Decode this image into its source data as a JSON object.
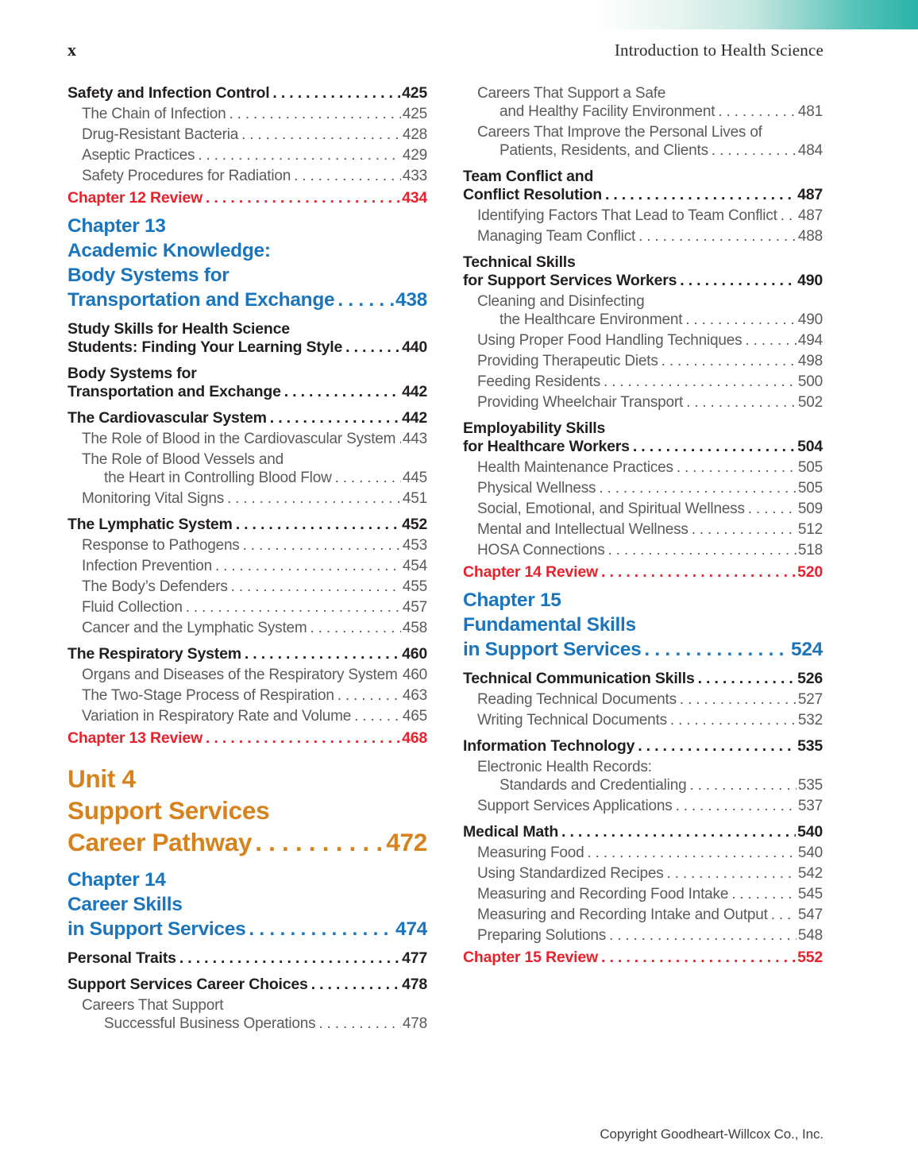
{
  "page": {
    "folio": "x",
    "running_head": "Introduction to Health Science",
    "copyright": "Copyright Goodheart-Willcox Co., Inc."
  },
  "colors": {
    "accent_teal": "#2ab3a9",
    "chapter_blue": "#1b75bc",
    "unit_orange": "#d6831e",
    "review_red": "#e8222d",
    "body_gray": "#595a5c",
    "heading_black": "#231f20"
  },
  "toc": {
    "left": [
      {
        "style": "section",
        "lines": [
          "Safety and Infection Control"
        ],
        "page": "425"
      },
      {
        "style": "sub",
        "lines": [
          "The Chain of Infection"
        ],
        "page": "425"
      },
      {
        "style": "sub",
        "lines": [
          "Drug-Resistant Bacteria"
        ],
        "page": "428"
      },
      {
        "style": "sub",
        "lines": [
          "Aseptic Practices"
        ],
        "page": "429"
      },
      {
        "style": "sub",
        "lines": [
          "Safety Procedures for Radiation"
        ],
        "page": "433"
      },
      {
        "style": "review",
        "lines": [
          "Chapter 12 Review"
        ],
        "page": "434"
      },
      {
        "style": "chapter",
        "lines": [
          "Chapter 13",
          "Academic Knowledge:",
          "Body Systems for",
          "Transportation and Exchange"
        ],
        "page": "438"
      },
      {
        "style": "section",
        "lines": [
          "Study Skills for Health Science",
          "Students: Finding Your Learning Style"
        ],
        "page": "440"
      },
      {
        "style": "section",
        "lines": [
          "Body Systems for",
          "Transportation and Exchange"
        ],
        "page": "442"
      },
      {
        "style": "section",
        "lines": [
          "The Cardiovascular System"
        ],
        "page": "442"
      },
      {
        "style": "sub",
        "lines": [
          "The Role of Blood in the Cardiovascular System"
        ],
        "page": "443"
      },
      {
        "style": "sub",
        "lines": [
          "The Role of Blood Vessels and",
          "the Heart in Controlling Blood Flow"
        ],
        "page": "445"
      },
      {
        "style": "sub",
        "lines": [
          "Monitoring Vital Signs"
        ],
        "page": "451"
      },
      {
        "style": "section",
        "lines": [
          "The Lymphatic System"
        ],
        "page": "452"
      },
      {
        "style": "sub",
        "lines": [
          "Response to Pathogens"
        ],
        "page": "453"
      },
      {
        "style": "sub",
        "lines": [
          "Infection Prevention"
        ],
        "page": "454"
      },
      {
        "style": "sub",
        "lines": [
          "The Body’s Defenders"
        ],
        "page": "455"
      },
      {
        "style": "sub",
        "lines": [
          "Fluid Collection"
        ],
        "page": "457"
      },
      {
        "style": "sub",
        "lines": [
          "Cancer and the Lymphatic System"
        ],
        "page": "458"
      },
      {
        "style": "section",
        "lines": [
          "The Respiratory System"
        ],
        "page": "460"
      },
      {
        "style": "sub",
        "lines": [
          "Organs and Diseases of the Respiratory System"
        ],
        "page": "460"
      },
      {
        "style": "sub",
        "lines": [
          "The Two-Stage Process of Respiration"
        ],
        "page": "463"
      },
      {
        "style": "sub",
        "lines": [
          "Variation in Respiratory Rate and Volume"
        ],
        "page": "465"
      },
      {
        "style": "review",
        "lines": [
          "Chapter 13 Review"
        ],
        "page": "468"
      },
      {
        "style": "unit",
        "lines": [
          "Unit 4",
          "Support Services",
          "Career Pathway"
        ],
        "page": "472"
      },
      {
        "style": "chapter",
        "lines": [
          "Chapter 14",
          "Career Skills",
          "in Support Services"
        ],
        "page": "474"
      },
      {
        "style": "section",
        "lines": [
          "Personal Traits"
        ],
        "page": "477"
      },
      {
        "style": "section",
        "lines": [
          "Support Services Career Choices"
        ],
        "page": "478"
      },
      {
        "style": "sub",
        "lines": [
          "Careers That Support",
          "Successful Business Operations"
        ],
        "page": "478"
      }
    ],
    "right": [
      {
        "style": "sub",
        "lines": [
          "Careers That Support a Safe",
          "and Healthy Facility Environment"
        ],
        "page": "481"
      },
      {
        "style": "sub",
        "lines": [
          "Careers That Improve the Personal Lives of",
          "Patients, Residents, and Clients"
        ],
        "page": "484"
      },
      {
        "style": "section",
        "lines": [
          "Team Conflict and",
          "Conflict Resolution"
        ],
        "page": "487"
      },
      {
        "style": "sub",
        "lines": [
          "Identifying Factors That Lead to Team Conflict"
        ],
        "page": "487"
      },
      {
        "style": "sub",
        "lines": [
          "Managing Team Conflict"
        ],
        "page": "488"
      },
      {
        "style": "section",
        "lines": [
          "Technical Skills",
          "for Support Services Workers"
        ],
        "page": "490"
      },
      {
        "style": "sub",
        "lines": [
          "Cleaning and Disinfecting",
          "the Healthcare Environment"
        ],
        "page": "490"
      },
      {
        "style": "sub",
        "lines": [
          "Using Proper Food Handling Techniques"
        ],
        "page": "494"
      },
      {
        "style": "sub",
        "lines": [
          "Providing Therapeutic Diets"
        ],
        "page": "498"
      },
      {
        "style": "sub",
        "lines": [
          "Feeding Residents"
        ],
        "page": "500"
      },
      {
        "style": "sub",
        "lines": [
          "Providing Wheelchair Transport"
        ],
        "page": "502"
      },
      {
        "style": "section",
        "lines": [
          "Employability Skills",
          "for Healthcare Workers"
        ],
        "page": "504"
      },
      {
        "style": "sub",
        "lines": [
          "Health Maintenance Practices"
        ],
        "page": "505"
      },
      {
        "style": "sub",
        "lines": [
          "Physical Wellness"
        ],
        "page": "505"
      },
      {
        "style": "sub",
        "lines": [
          "Social, Emotional, and Spiritual Wellness"
        ],
        "page": "509"
      },
      {
        "style": "sub",
        "lines": [
          "Mental and Intellectual Wellness"
        ],
        "page": "512"
      },
      {
        "style": "sub",
        "lines": [
          "HOSA Connections"
        ],
        "page": "518"
      },
      {
        "style": "review",
        "lines": [
          "Chapter 14 Review"
        ],
        "page": "520"
      },
      {
        "style": "chapter",
        "lines": [
          "Chapter 15",
          "Fundamental Skills",
          "in Support Services"
        ],
        "page": "524"
      },
      {
        "style": "section",
        "lines": [
          "Technical Communication Skills"
        ],
        "page": "526"
      },
      {
        "style": "sub",
        "lines": [
          "Reading Technical Documents"
        ],
        "page": "527"
      },
      {
        "style": "sub",
        "lines": [
          "Writing Technical Documents"
        ],
        "page": "532"
      },
      {
        "style": "section",
        "lines": [
          "Information Technology"
        ],
        "page": "535"
      },
      {
        "style": "sub",
        "lines": [
          "Electronic Health Records:",
          "Standards and Credentialing"
        ],
        "page": "535"
      },
      {
        "style": "sub",
        "lines": [
          "Support Services Applications"
        ],
        "page": "537"
      },
      {
        "style": "section",
        "lines": [
          "Medical Math"
        ],
        "page": "540"
      },
      {
        "style": "sub",
        "lines": [
          "Measuring Food"
        ],
        "page": "540"
      },
      {
        "style": "sub",
        "lines": [
          "Using Standardized Recipes"
        ],
        "page": "542"
      },
      {
        "style": "sub",
        "lines": [
          "Measuring and Recording Food Intake"
        ],
        "page": "545"
      },
      {
        "style": "sub",
        "lines": [
          "Measuring and Recording Intake and Output"
        ],
        "page": "547"
      },
      {
        "style": "sub",
        "lines": [
          "Preparing Solutions"
        ],
        "page": "548"
      },
      {
        "style": "review",
        "lines": [
          "Chapter 15 Review"
        ],
        "page": "552"
      }
    ]
  }
}
